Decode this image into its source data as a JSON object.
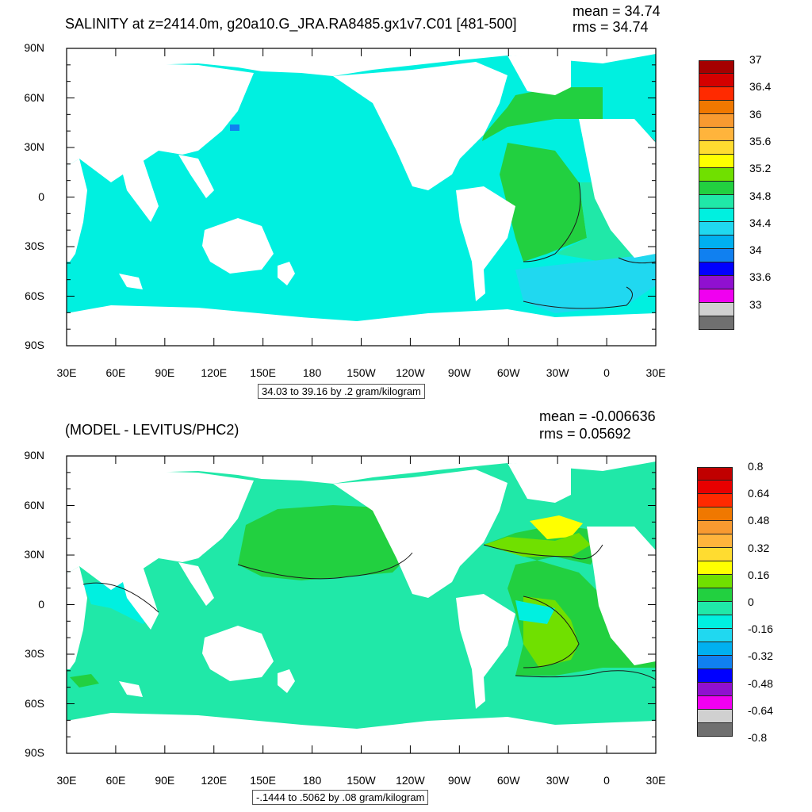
{
  "colors": {
    "land": "#ffffff",
    "frame": "#000000",
    "contour": "#1a1a1a"
  },
  "top_panel": {
    "title": "SALINITY at z=2414.0m, g20a10.G_JRA.RA8485.gx1v7.C01 [481-500]",
    "mean_text": "mean = 34.74",
    "rms_text": "rms = 34.74",
    "range_text": "34.03 to 39.16 by .2 gram/kilogram",
    "y_ticks": [
      "90N",
      "60N",
      "30N",
      "0",
      "30S",
      "60S",
      "90S"
    ],
    "x_ticks": [
      "30E",
      "60E",
      "90E",
      "120E",
      "150E",
      "180",
      "150W",
      "120W",
      "90W",
      "60W",
      "30W",
      "0",
      "30E"
    ],
    "colorbar": {
      "labels": [
        "37",
        "36.4",
        "36",
        "35.6",
        "35.2",
        "34.8",
        "34.4",
        "34",
        "33.6",
        "33"
      ],
      "colors": [
        "#a50000",
        "#d40000",
        "#ff2a00",
        "#f07800",
        "#f89a30",
        "#ffb43c",
        "#ffdc30",
        "#ffff00",
        "#70e000",
        "#22d040",
        "#20e8a8",
        "#00f0e0",
        "#20d8f0",
        "#00b0f0",
        "#1080f0",
        "#0000ff",
        "#9010d0",
        "#f000f0",
        "#d0d0d0",
        "#707070"
      ]
    }
  },
  "bottom_panel": {
    "title": "(MODEL - LEVITUS/PHC2)",
    "mean_text": "mean = -0.006636",
    "rms_text": "rms = 0.05692",
    "range_text": "-.1444 to .5062 by .08 gram/kilogram",
    "y_ticks": [
      "90N",
      "60N",
      "30N",
      "0",
      "30S",
      "60S",
      "90S"
    ],
    "x_ticks": [
      "30E",
      "60E",
      "90E",
      "120E",
      "150E",
      "180",
      "150W",
      "120W",
      "90W",
      "60W",
      "30W",
      "0",
      "30E"
    ],
    "colorbar": {
      "labels": [
        "0.8",
        "0.64",
        "0.48",
        "0.32",
        "0.16",
        "0",
        "-0.16",
        "-0.32",
        "-0.48",
        "-0.64",
        "-0.8"
      ],
      "colors": [
        "#c00000",
        "#e80000",
        "#ff2a00",
        "#f07800",
        "#f89a30",
        "#ffb43c",
        "#ffdc30",
        "#ffff00",
        "#70e000",
        "#22d040",
        "#20e8a8",
        "#00f0e0",
        "#20d8f0",
        "#00b0f0",
        "#1080f0",
        "#0000ff",
        "#9010d0",
        "#f000f0",
        "#d0d0d0",
        "#707070"
      ]
    }
  }
}
